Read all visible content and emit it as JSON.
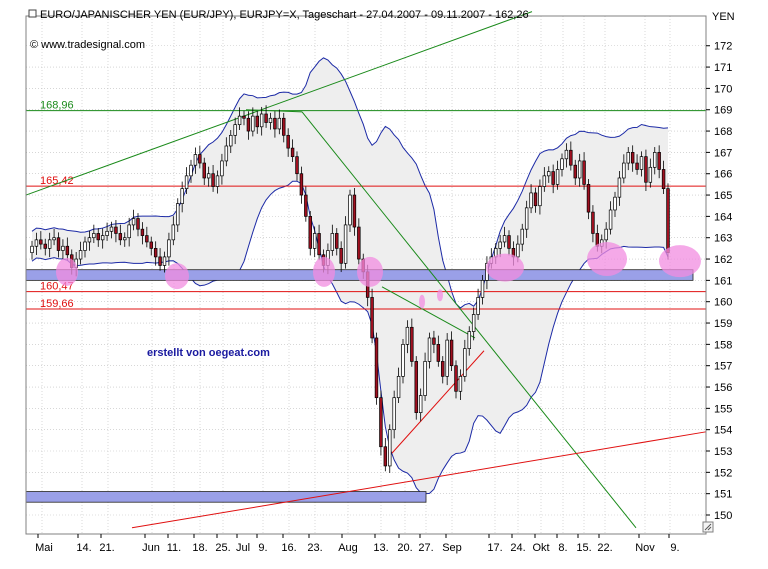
{
  "header": {
    "title": "EURO/JAPANISCHER YEN (EUR/JPY), EURJPY=X, Tageschart - 27.04.2007 - 09.11.2007 - 162,26",
    "source": "© www.tradesignal.com",
    "currency": "YEN"
  },
  "watermark": "erstellt von oegeat.com",
  "colors": {
    "grid": "#bfbfbf",
    "bollinger": "#1c2aa6",
    "bollinger_fill": "#eeeeee",
    "up_candle": "#ffffff",
    "down_candle": "#a01020",
    "green_line": "#1a8a1a",
    "red_line": "#e01010",
    "support_band": "#9aa0e8",
    "highlight": "#f28ce0",
    "watermark": "#1a1aa0"
  },
  "chart_data": {
    "type": "candlestick",
    "ylim": [
      149.3,
      173.5
    ],
    "y_ticks": [
      150,
      151,
      152,
      153,
      154,
      155,
      156,
      157,
      158,
      159,
      160,
      161,
      162,
      163,
      164,
      165,
      166,
      167,
      168,
      169,
      170,
      171,
      172
    ],
    "x_ticks": [
      "Mai",
      "14.",
      "21.",
      "Jun",
      "11.",
      "18.",
      "25.",
      "Jul",
      "9.",
      "16.",
      "23.",
      "Aug",
      "13.",
      "20.",
      "27.",
      "Sep",
      "17.",
      "24.",
      "Okt",
      "8.",
      "15.",
      "22.",
      "Nov",
      "9."
    ],
    "horizontal_levels": [
      {
        "label": "168,96",
        "value": 168.96,
        "color": "green"
      },
      {
        "label": "165,42",
        "value": 165.42,
        "color": "red"
      },
      {
        "label": "160,47",
        "value": 160.47,
        "color": "red"
      },
      {
        "label": "159,66",
        "value": 159.66,
        "color": "red"
      }
    ],
    "support_band": {
      "from": 161.0,
      "to": 161.5
    },
    "lower_band": {
      "from": 150.6,
      "to": 151.1
    },
    "closes": [
      162.6,
      162.9,
      162.7,
      162.5,
      162.9,
      163.0,
      162.4,
      162.6,
      162.2,
      161.6,
      162.0,
      162.4,
      162.8,
      163.0,
      163.2,
      162.9,
      163.1,
      163.3,
      163.5,
      163.2,
      162.9,
      163.0,
      163.6,
      163.9,
      163.4,
      163.1,
      162.8,
      162.5,
      162.1,
      161.7,
      162.1,
      162.9,
      163.6,
      164.6,
      165.3,
      165.9,
      166.4,
      166.9,
      166.5,
      165.8,
      166.0,
      165.4,
      165.9,
      166.6,
      167.3,
      167.8,
      168.3,
      168.7,
      168.6,
      168.0,
      168.7,
      168.2,
      168.8,
      168.4,
      168.6,
      168.1,
      168.6,
      167.8,
      167.2,
      166.8,
      166.0,
      165.0,
      164.0,
      162.5,
      163.2,
      162.2,
      161.7,
      162.4,
      163.2,
      162.5,
      161.8,
      163.6,
      165.0,
      163.5,
      162.0,
      161.4,
      160.2,
      158.3,
      155.5,
      153.2,
      152.3,
      154.0,
      155.5,
      156.5,
      158.0,
      158.8,
      157.2,
      154.8,
      155.6,
      157.2,
      158.3,
      158.0,
      157.2,
      156.5,
      158.2,
      157.0,
      155.8,
      156.5,
      157.8,
      158.6,
      159.4,
      160.2,
      161.0,
      161.8,
      162.1,
      162.5,
      162.8,
      163.1,
      162.5,
      162.1,
      162.7,
      163.4,
      164.4,
      165.1,
      164.5,
      165.4,
      165.9,
      166.1,
      165.5,
      166.2,
      166.7,
      167.1,
      166.4,
      165.8,
      166.6,
      165.5,
      164.2,
      163.2,
      162.6,
      162.9,
      163.4,
      164.3,
      164.9,
      165.8,
      166.5,
      167.0,
      166.5,
      166.2,
      166.8,
      165.6,
      166.3,
      167.0,
      166.2,
      165.3,
      162.3
    ]
  }
}
